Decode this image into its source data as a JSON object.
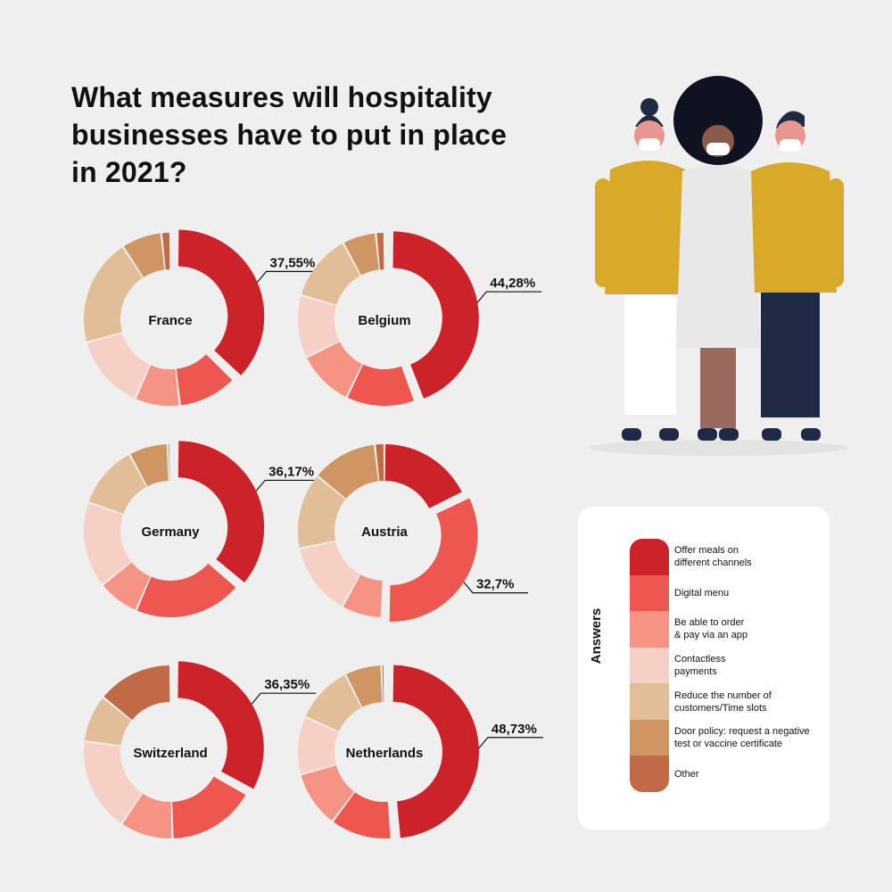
{
  "title": "What measures will hospitality businesses have to put in place in 2021?",
  "legend": {
    "title": "Answers",
    "items": [
      {
        "label": "Offer meals on\ndifferent channels",
        "color": "#cc2229"
      },
      {
        "label": "Digital menu",
        "color": "#ee5650"
      },
      {
        "label": "Be able to order\n& pay via an app",
        "color": "#f59384"
      },
      {
        "label": "Contactless\npayments",
        "color": "#f6cfc5"
      },
      {
        "label": "Reduce the number of\ncustomers/Time slots",
        "color": "#e1bd98"
      },
      {
        "label": "Door policy: request a negative\ntest or vaccine certificate",
        "color": "#cf9563"
      },
      {
        "label": "Other",
        "color": "#c06b46"
      }
    ]
  },
  "chart_data": [
    {
      "type": "pie",
      "name": "France",
      "callout": "37,55%",
      "highlight": 0,
      "values": [
        37.55,
        11.2,
        8.5,
        14.2,
        20.3,
        7.6,
        1.7
      ]
    },
    {
      "type": "pie",
      "name": "Belgium",
      "callout": "44,28%",
      "highlight": 0,
      "values": [
        44.28,
        12.9,
        10.6,
        11.7,
        12.6,
        6.3,
        1.6
      ]
    },
    {
      "type": "pie",
      "name": "Germany",
      "callout": "36,17%",
      "highlight": 0,
      "values": [
        36.17,
        20.3,
        7.8,
        16.0,
        11.9,
        7.3,
        0.5
      ]
    },
    {
      "type": "pie",
      "name": "Austria",
      "callout": "32,7%",
      "highlight": 1,
      "values": [
        17.8,
        32.7,
        7.6,
        13.6,
        14.2,
        12.3,
        1.8
      ]
    },
    {
      "type": "pie",
      "name": "Switzerland",
      "callout": "36,35%",
      "highlight": 0,
      "values": [
        36.35,
        18.2,
        10.9,
        19.2,
        9.8,
        0,
        15.55
      ]
    },
    {
      "type": "pie",
      "name": "Netherlands",
      "callout": "48,73%",
      "highlight": 0,
      "values": [
        48.73,
        11.5,
        10.6,
        10.8,
        10.9,
        6.9,
        0.57
      ]
    }
  ]
}
